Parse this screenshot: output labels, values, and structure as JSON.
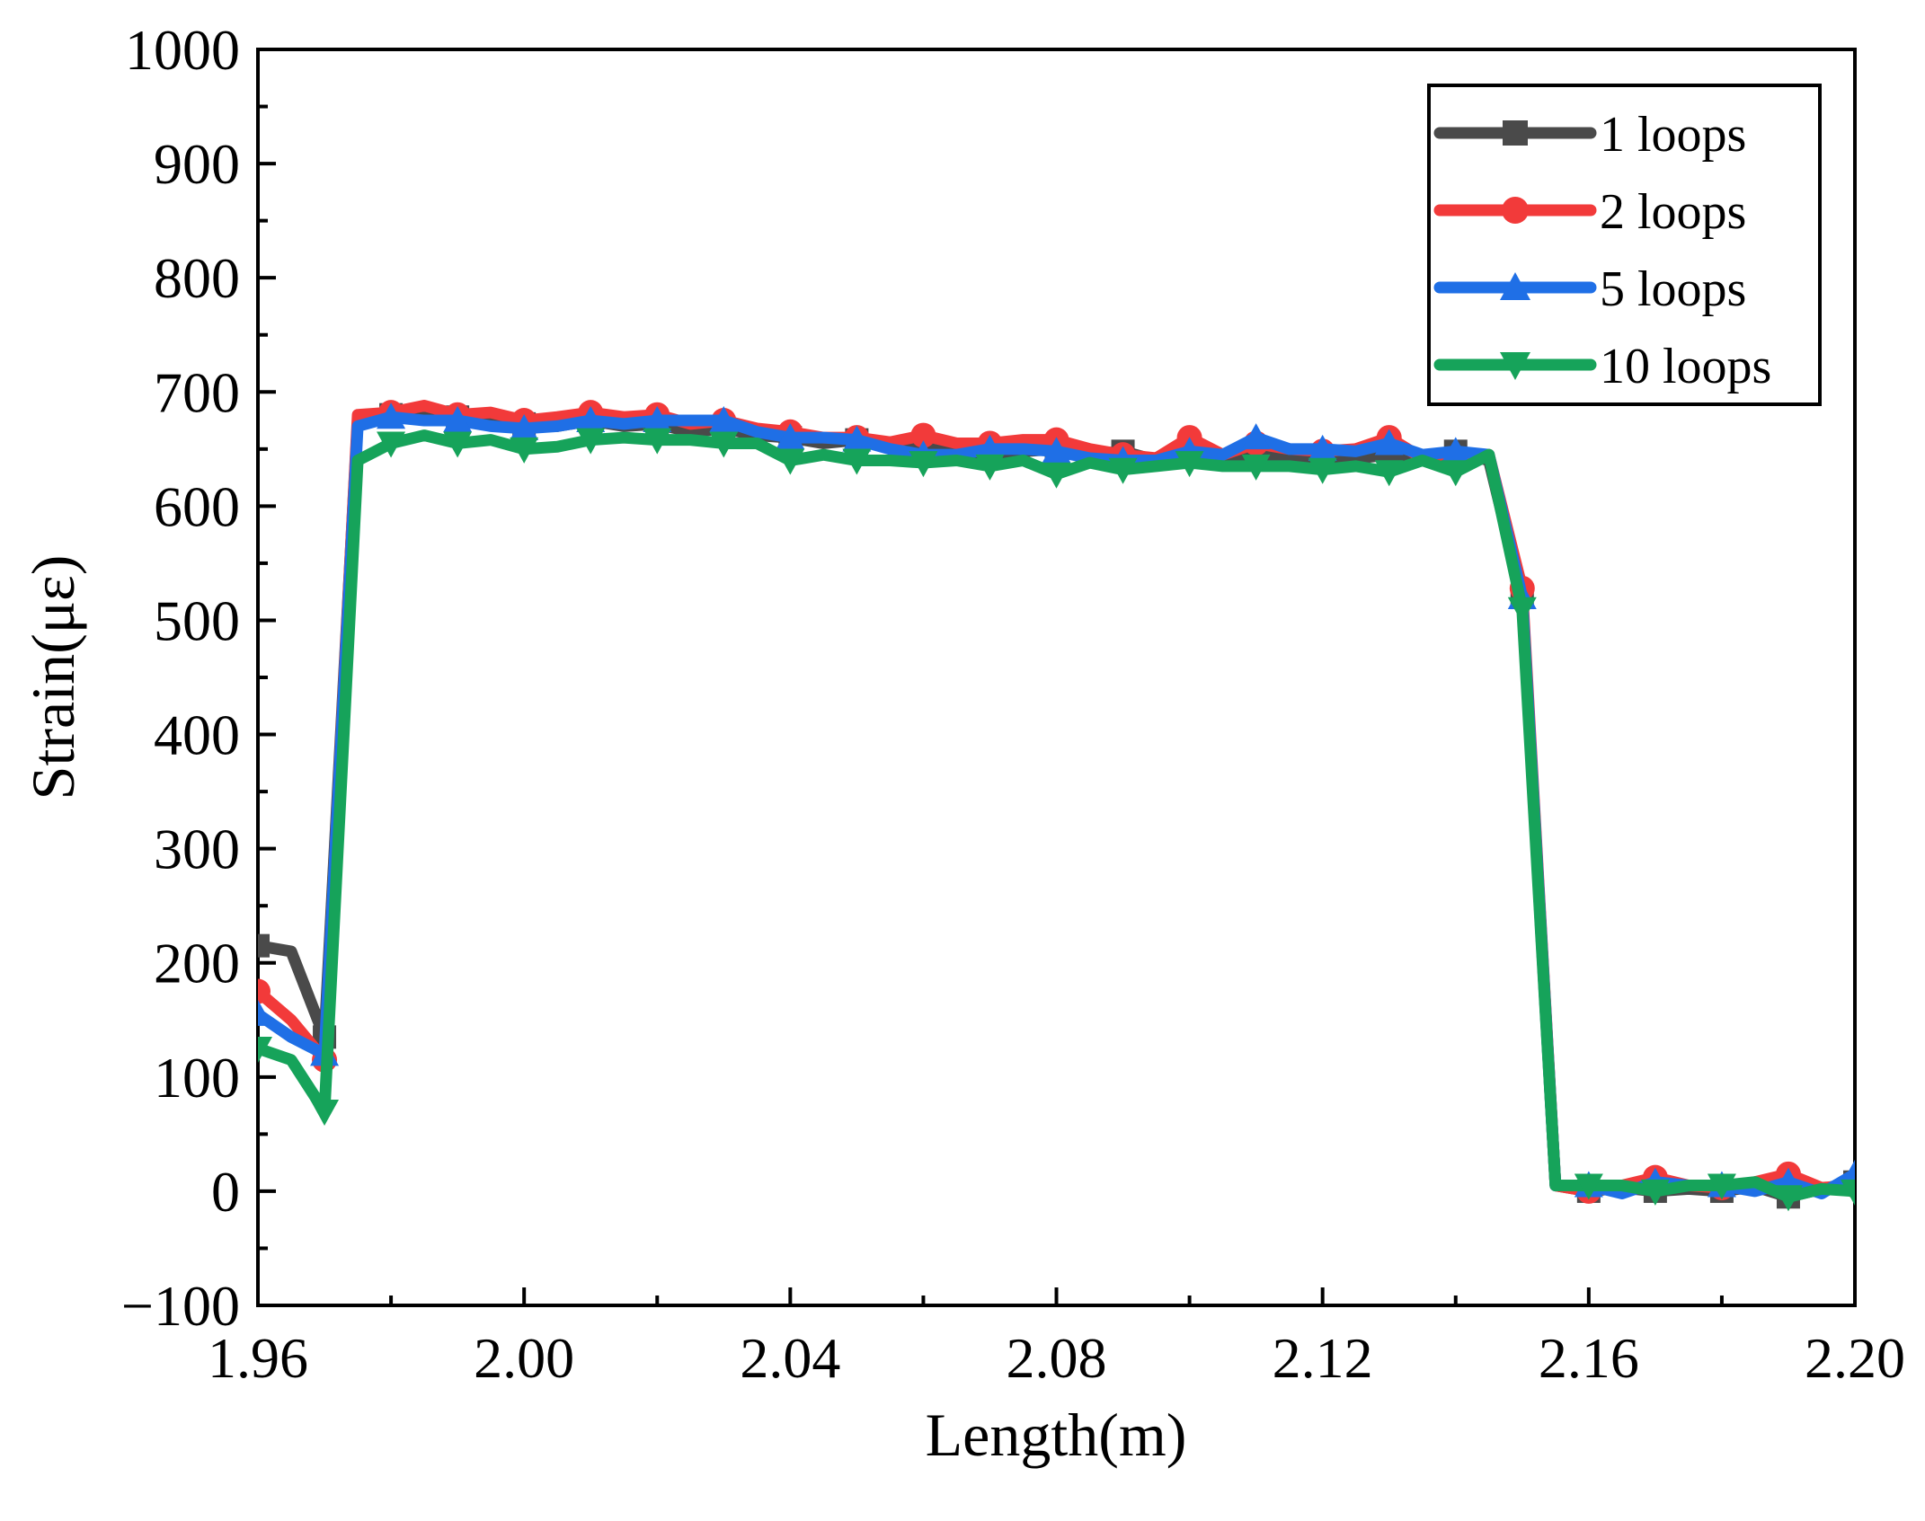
{
  "chart_data": {
    "type": "line",
    "title": "",
    "xlabel": "Length(m)",
    "ylabel": "Strain(με)",
    "xlim": [
      1.96,
      2.2
    ],
    "ylim": [
      -100,
      1000
    ],
    "xticks": [
      1.96,
      2.0,
      2.04,
      2.08,
      2.12,
      2.16,
      2.2
    ],
    "xtick_labels": [
      "1.96",
      "2.00",
      "2.04",
      "2.08",
      "2.12",
      "2.16",
      "2.20"
    ],
    "yticks": [
      -100,
      0,
      100,
      200,
      300,
      400,
      500,
      600,
      700,
      800,
      900,
      1000
    ],
    "ytick_labels": [
      "−100",
      "0",
      "100",
      "200",
      "300",
      "400",
      "500",
      "600",
      "700",
      "800",
      "900",
      "1000"
    ],
    "grid": false,
    "legend_position": "top-right",
    "x": [
      1.96,
      1.965,
      1.97,
      1.975,
      1.98,
      1.985,
      1.99,
      1.995,
      2.0,
      2.005,
      2.01,
      2.015,
      2.02,
      2.025,
      2.03,
      2.035,
      2.04,
      2.045,
      2.05,
      2.055,
      2.06,
      2.065,
      2.07,
      2.075,
      2.08,
      2.085,
      2.09,
      2.095,
      2.1,
      2.105,
      2.11,
      2.115,
      2.12,
      2.125,
      2.13,
      2.135,
      2.14,
      2.145,
      2.15,
      2.155,
      2.16,
      2.165,
      2.17,
      2.175,
      2.18,
      2.185,
      2.19,
      2.195,
      2.2
    ],
    "series": [
      {
        "name": "1 loops",
        "color": "#4a4a4a",
        "marker": "square",
        "values": [
          215,
          210,
          135,
          675,
          680,
          685,
          678,
          675,
          672,
          670,
          675,
          670,
          672,
          665,
          668,
          662,
          660,
          655,
          658,
          655,
          650,
          648,
          645,
          648,
          650,
          645,
          648,
          640,
          645,
          642,
          645,
          642,
          640,
          642,
          645,
          640,
          648,
          640,
          520,
          5,
          0,
          3,
          0,
          2,
          0,
          4,
          -5,
          2,
          8
        ]
      },
      {
        "name": "2 loops",
        "color": "#f23a3a",
        "marker": "circle",
        "values": [
          175,
          150,
          115,
          680,
          682,
          688,
          680,
          682,
          675,
          678,
          682,
          678,
          680,
          672,
          675,
          668,
          665,
          660,
          660,
          656,
          662,
          655,
          655,
          658,
          658,
          650,
          645,
          642,
          660,
          645,
          655,
          650,
          648,
          650,
          660,
          642,
          640,
          645,
          528,
          5,
          0,
          5,
          12,
          5,
          3,
          8,
          15,
          3,
          5
        ]
      },
      {
        "name": "5 loops",
        "color": "#1f6fe6",
        "marker": "triangle-up",
        "values": [
          155,
          135,
          120,
          670,
          678,
          675,
          675,
          670,
          668,
          670,
          675,
          672,
          675,
          675,
          675,
          665,
          660,
          660,
          658,
          650,
          645,
          645,
          650,
          650,
          648,
          642,
          640,
          640,
          648,
          645,
          660,
          650,
          650,
          648,
          655,
          645,
          648,
          645,
          520,
          5,
          5,
          -2,
          8,
          5,
          5,
          0,
          8,
          -2,
          15
        ]
      },
      {
        "name": "10 loops",
        "color": "#16a35a",
        "marker": "triangle-down",
        "values": [
          125,
          115,
          70,
          640,
          655,
          662,
          655,
          658,
          650,
          652,
          658,
          660,
          658,
          658,
          655,
          655,
          640,
          645,
          640,
          640,
          638,
          640,
          635,
          640,
          628,
          638,
          632,
          635,
          638,
          635,
          635,
          635,
          632,
          635,
          630,
          640,
          630,
          645,
          510,
          5,
          5,
          5,
          0,
          5,
          5,
          8,
          -5,
          2,
          0
        ]
      }
    ]
  }
}
